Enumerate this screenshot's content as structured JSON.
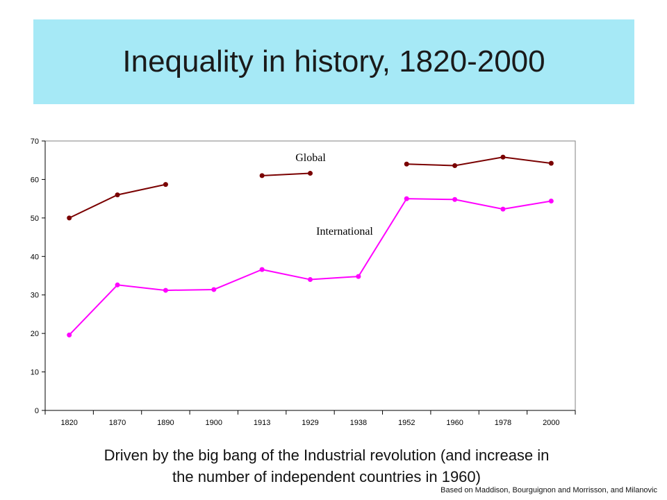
{
  "slide": {
    "title": "Inequality in history, 1820-2000",
    "caption_line1": "Driven by  the big bang of the Industrial revolution (and increase in",
    "caption_line2": "the number of independent countries in 1960)",
    "source": "Based on Maddison, Bourguignon and Morrisson, and Milanovic"
  },
  "colors": {
    "title_band": "#a6e9f6",
    "global": "#7a0000",
    "international": "#ff00ff",
    "axis": "#000000"
  },
  "chart_data": {
    "type": "line",
    "categories": [
      "1820",
      "1870",
      "1890",
      "1900",
      "1913",
      "1929",
      "1938",
      "1952",
      "1960",
      "1978",
      "2000"
    ],
    "ylim": [
      0,
      70
    ],
    "yticks": [
      0,
      10,
      20,
      30,
      40,
      50,
      60,
      70
    ],
    "grid": false,
    "series": [
      {
        "name": "Global",
        "color": "#7a0000",
        "values": [
          50,
          56,
          58.7,
          null,
          61,
          61.6,
          null,
          64,
          63.6,
          65.8,
          64.2
        ]
      },
      {
        "name": "International",
        "color": "#ff00ff",
        "values": [
          19.6,
          32.6,
          31.2,
          31.4,
          36.6,
          34,
          34.8,
          55,
          54.8,
          52.3,
          54.4
        ]
      }
    ]
  }
}
